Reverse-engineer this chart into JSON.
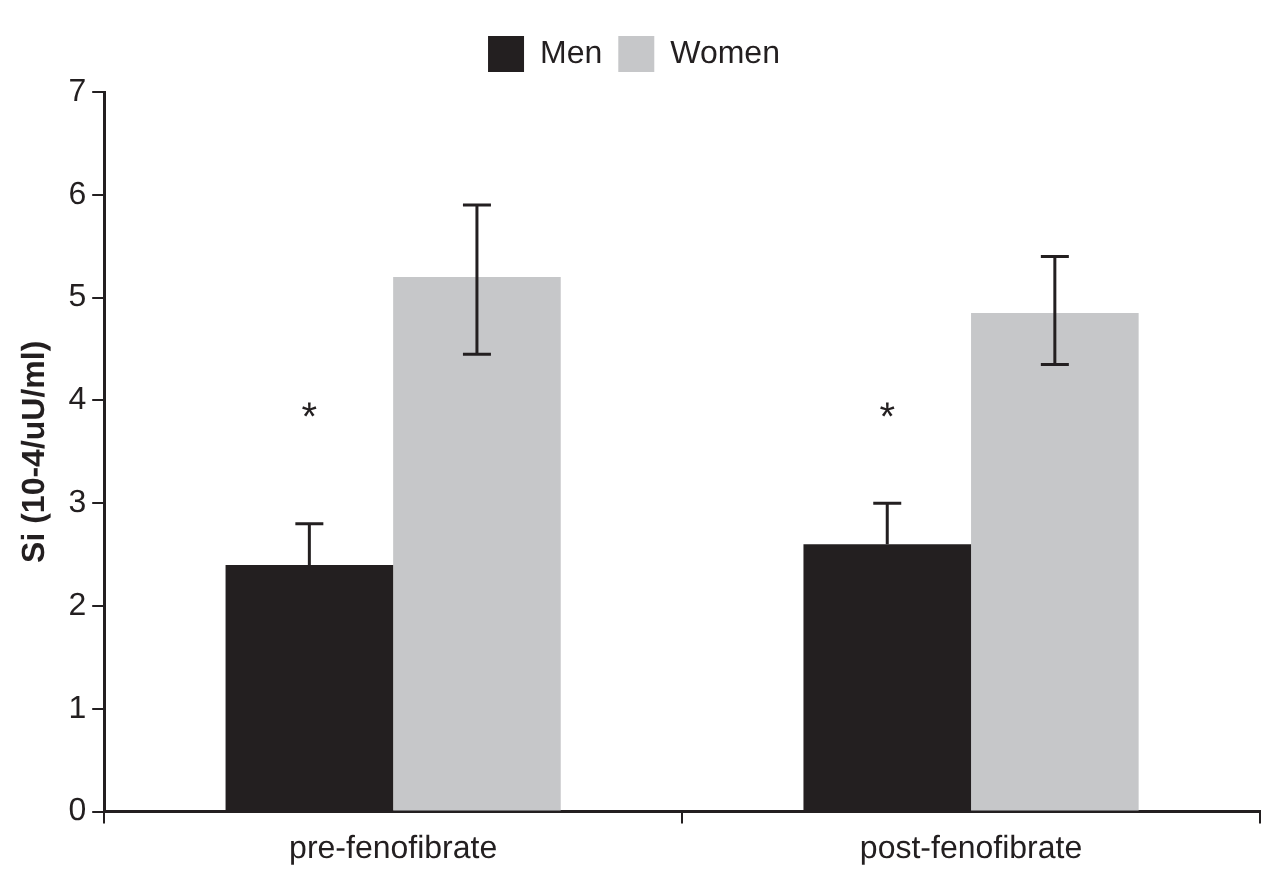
{
  "chart_data": {
    "type": "bar",
    "ylabel": "Si (10-4/uU/ml)",
    "categories": [
      "pre-fenofibrate",
      "post-fenofibrate"
    ],
    "series": [
      {
        "name": "Men",
        "color": "#231f20",
        "values": [
          2.4,
          2.6
        ],
        "errors": [
          [
            2.4,
            2.8
          ],
          [
            2.6,
            3.0
          ]
        ]
      },
      {
        "name": "Women",
        "color": "#c6c7c9",
        "values": [
          5.2,
          4.85
        ],
        "errors": [
          [
            4.45,
            5.9
          ],
          [
            4.35,
            5.4
          ]
        ]
      }
    ],
    "ylim": [
      0,
      7
    ],
    "yticks": [
      0,
      1,
      2,
      3,
      4,
      5,
      6,
      7
    ],
    "grid": false,
    "legend": "top",
    "annotations": [
      {
        "text": "*",
        "x": "pre-fenofibrate",
        "y": 3.9
      },
      {
        "text": "*",
        "x": "post-fenofibrate",
        "y": 3.9
      }
    ]
  }
}
